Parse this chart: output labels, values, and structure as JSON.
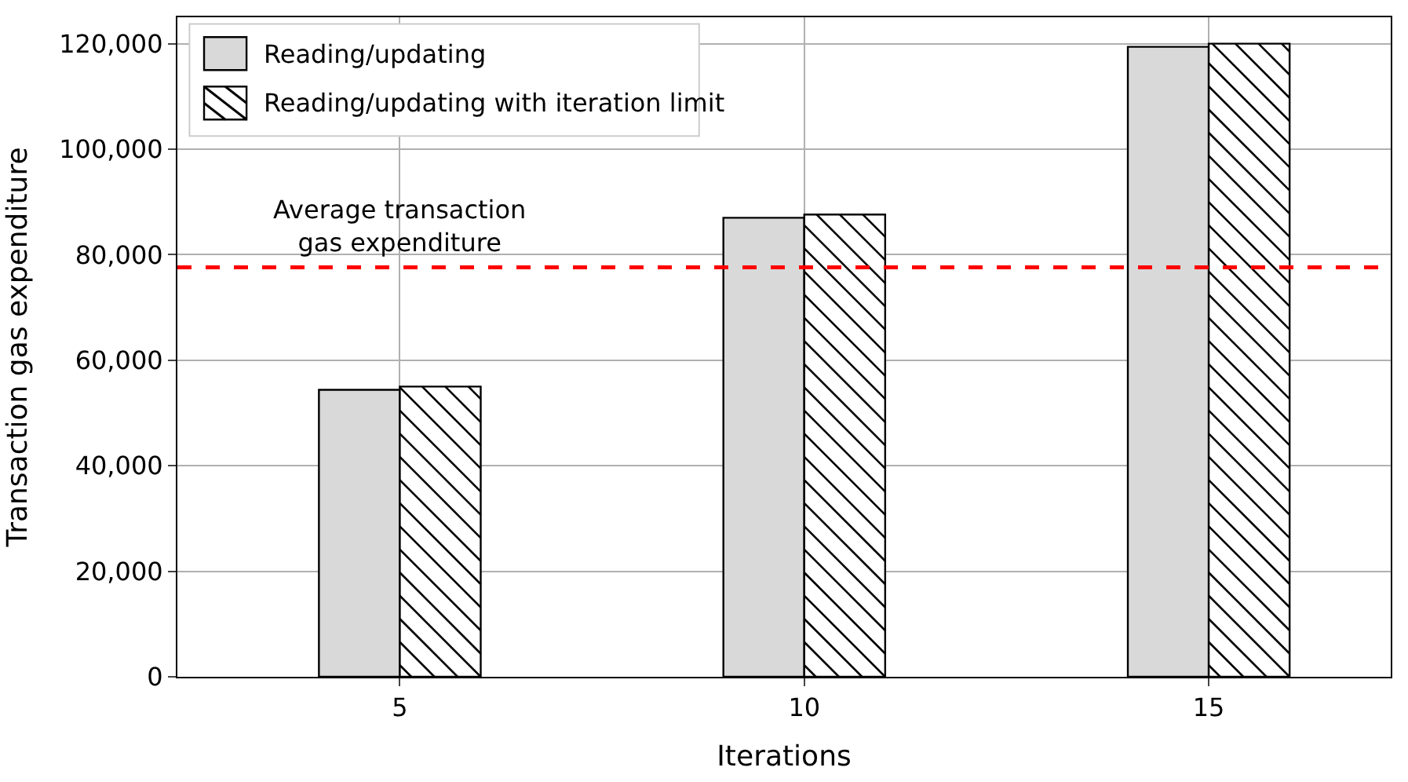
{
  "chart_data": {
    "type": "bar",
    "xlabel": "Iterations",
    "ylabel": "Transaction gas expenditure",
    "categories": [
      "5",
      "10",
      "15"
    ],
    "series": [
      {
        "name": "Reading/updating",
        "color": "#d9d9d9",
        "values": [
          54400,
          87000,
          119400
        ]
      },
      {
        "name": "Reading/updating with iteration limit",
        "color": "#ffffff",
        "values": [
          55000,
          87600,
          120000
        ]
      }
    ],
    "ylim": [
      0,
      125000
    ],
    "yticks": [
      {
        "value": 0,
        "label": "0"
      },
      {
        "value": 20000,
        "label": "20,000"
      },
      {
        "value": 40000,
        "label": "40,000"
      },
      {
        "value": 60000,
        "label": "60,000"
      },
      {
        "value": 80000,
        "label": "80,000"
      },
      {
        "value": 100000,
        "label": "100,000"
      },
      {
        "value": 120000,
        "label": "120,000"
      }
    ],
    "ref_lines": [
      {
        "axis": "y",
        "value": 77600,
        "label": "Average transaction\ngas expenditure",
        "color": "#ff0000",
        "line_style": "dashed"
      }
    ],
    "grid": true,
    "legend": "top left"
  }
}
